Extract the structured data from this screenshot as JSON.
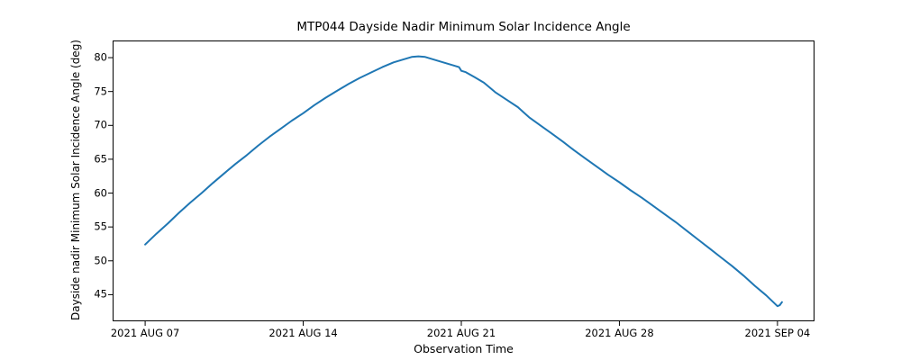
{
  "colors": {
    "background": "#ffffff",
    "text": "#000000",
    "spine": "#000000",
    "accent": "#1f77b4"
  },
  "chart_data": {
    "type": "line",
    "title": "MTP044 Dayside Nadir Minimum Solar Incidence Angle",
    "xlabel": "Observation Time",
    "ylabel": "Dayside nadir Minimum Solar Incidence Angle (deg)",
    "grid": false,
    "legend": false,
    "line": {
      "color": "#1f77b4",
      "width": 2
    },
    "x_axis": {
      "tick_labels": [
        "2021 AUG 07",
        "2021 AUG 14",
        "2021 AUG 21",
        "2021 AUG 28",
        "2021 SEP 04"
      ],
      "tick_positions_days": [
        0,
        7,
        14,
        21,
        28
      ],
      "lim_days": [
        -1.4,
        29.6
      ]
    },
    "y_axis": {
      "ticks": [
        45,
        50,
        55,
        60,
        65,
        70,
        75,
        80
      ],
      "lim": [
        41.2,
        82.4
      ]
    },
    "series": [
      {
        "name": "dayside-nadir-minimum-solar-incidence-angle",
        "x_unit": "days after 2021 AUG 07",
        "y_unit": "deg",
        "points_day_deg": [
          [
            0,
            52.4
          ],
          [
            0.5,
            54.0
          ],
          [
            1,
            55.5
          ],
          [
            1.5,
            57.1
          ],
          [
            2,
            58.6
          ],
          [
            2.5,
            60.0
          ],
          [
            3,
            61.5
          ],
          [
            3.5,
            62.9
          ],
          [
            4,
            64.3
          ],
          [
            4.5,
            65.6
          ],
          [
            5,
            67.0
          ],
          [
            5.5,
            68.3
          ],
          [
            6,
            69.5
          ],
          [
            6.5,
            70.7
          ],
          [
            7,
            71.8
          ],
          [
            7.5,
            73.0
          ],
          [
            8,
            74.1
          ],
          [
            8.5,
            75.1
          ],
          [
            9,
            76.1
          ],
          [
            9.5,
            77.0
          ],
          [
            10,
            77.8
          ],
          [
            10.5,
            78.6
          ],
          [
            11,
            79.3
          ],
          [
            11.4,
            79.7
          ],
          [
            11.8,
            80.1
          ],
          [
            12.1,
            80.2
          ],
          [
            12.4,
            80.1
          ],
          [
            12.8,
            79.7
          ],
          [
            13.2,
            79.3
          ],
          [
            13.6,
            78.9
          ],
          [
            13.9,
            78.6
          ],
          [
            14.0,
            78.05
          ],
          [
            14.2,
            77.85
          ],
          [
            14.6,
            77.1
          ],
          [
            15,
            76.3
          ],
          [
            15.5,
            74.9
          ],
          [
            16,
            73.8
          ],
          [
            16.5,
            72.7
          ],
          [
            17,
            71.2
          ],
          [
            17.5,
            70.0
          ],
          [
            18,
            68.8
          ],
          [
            18.5,
            67.6
          ],
          [
            19,
            66.3
          ],
          [
            19.5,
            65.1
          ],
          [
            20,
            63.9
          ],
          [
            20.5,
            62.7
          ],
          [
            21,
            61.6
          ],
          [
            21.5,
            60.4
          ],
          [
            22,
            59.3
          ],
          [
            22.5,
            58.1
          ],
          [
            23,
            56.9
          ],
          [
            23.5,
            55.7
          ],
          [
            24,
            54.4
          ],
          [
            24.5,
            53.1
          ],
          [
            25,
            51.8
          ],
          [
            25.5,
            50.5
          ],
          [
            26,
            49.2
          ],
          [
            26.5,
            47.8
          ],
          [
            27,
            46.3
          ],
          [
            27.5,
            44.9
          ],
          [
            28,
            43.3
          ],
          [
            28.1,
            43.45
          ],
          [
            28.2,
            43.9
          ]
        ]
      }
    ]
  }
}
